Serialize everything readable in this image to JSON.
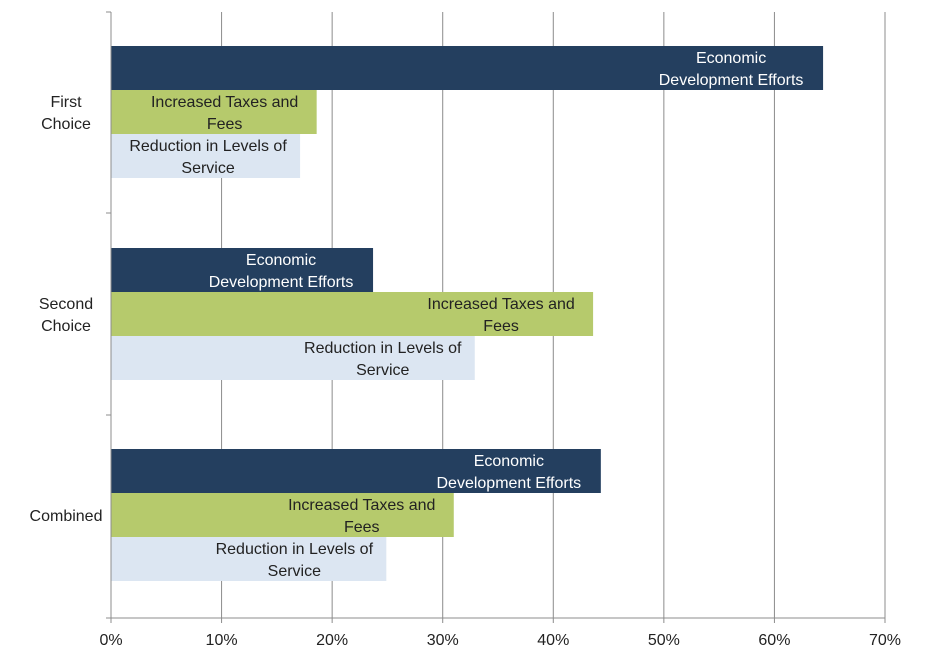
{
  "chart_data": {
    "type": "bar",
    "orientation": "horizontal",
    "categories": [
      "First\nChoice",
      "Second\nChoice",
      "Combined"
    ],
    "series": [
      {
        "key": "econ",
        "label_lines": [
          "Economic",
          "Development Efforts"
        ],
        "color": "#243f5f",
        "text_color": "#ffffff",
        "values": [
          64.4,
          23.7,
          44.3
        ]
      },
      {
        "key": "taxes",
        "label_lines": [
          "Increased Taxes and",
          "Fees"
        ],
        "color": "#b6ca6c",
        "text_color": "#222222",
        "values": [
          18.6,
          43.6,
          31.0
        ]
      },
      {
        "key": "reduction",
        "label_lines": [
          "Reduction in Levels of",
          "Service"
        ],
        "color": "#dce6f2",
        "text_color": "#222222",
        "values": [
          17.1,
          32.9,
          24.9
        ]
      }
    ],
    "xlim": [
      0,
      70
    ],
    "xticks": [
      "0%",
      "10%",
      "20%",
      "30%",
      "40%",
      "50%",
      "60%",
      "70%"
    ],
    "grid": true,
    "gridline_color": "#8c8c8c",
    "axis_color": "#8c8c8c",
    "legend": "none"
  }
}
